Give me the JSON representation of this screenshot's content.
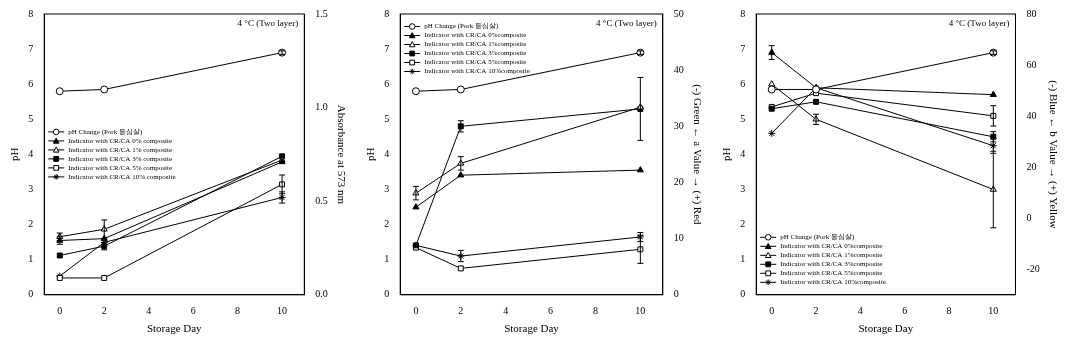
{
  "chart_data": [
    {
      "type": "line",
      "x_label": "Storage Day",
      "y_label": "pH",
      "y2_label": "Absorbance at 573 nm",
      "annotation": "4 °C (Two layer)",
      "legend": "center left",
      "grid": false,
      "x": [
        0,
        2,
        10
      ],
      "xlim": [
        -0.7,
        11
      ],
      "xticks": [
        0,
        2,
        4,
        6,
        8,
        10
      ],
      "ylim": [
        0,
        8
      ],
      "yticks": [
        0,
        1,
        2,
        3,
        4,
        5,
        6,
        7,
        8
      ],
      "y2lim": [
        0,
        1.5
      ],
      "y2ticks": [
        {
          "value": 0,
          "label": "0.0"
        },
        {
          "value": 0.5,
          "label": "0.5"
        },
        {
          "value": 1,
          "label": "1.0"
        },
        {
          "value": 1.5,
          "label": "1.5"
        }
      ],
      "series": [
        {
          "name": "pH Change (Pork 등심살)",
          "color": "#000000",
          "marker": "circle_open",
          "axis": "y",
          "values": [
            5.8,
            5.85,
            6.9
          ],
          "errors": [
            null,
            null,
            0.05
          ]
        },
        {
          "name": "Indicator with CR/CA 0% composite",
          "color": "#000000",
          "marker": "triangle",
          "axis": "y2",
          "values": [
            0.29,
            0.3,
            0.71
          ],
          "errors": [
            0.02,
            null,
            null
          ]
        },
        {
          "name": "Indicator with CR/CA 1% composite",
          "color": "#000000",
          "marker": "triangle_open",
          "axis": "y2",
          "values": [
            0.31,
            0.35,
            0.72
          ],
          "errors": [
            0.02,
            0.05,
            null
          ]
        },
        {
          "name": "Indicator with CR/CA 3% composite",
          "color": "#000000",
          "marker": "square",
          "axis": "y2",
          "values": [
            0.21,
            0.26,
            0.74
          ],
          "errors": [
            null,
            0.02,
            null
          ]
        },
        {
          "name": "Indicator with CR/CA 5% composite",
          "color": "#000000",
          "marker": "square_open",
          "axis": "y2",
          "values": [
            0.09,
            0.09,
            0.59
          ],
          "errors": [
            null,
            null,
            0.05
          ]
        },
        {
          "name": "Indicator with CR/CA 10% composite",
          "color": "#000000",
          "marker": "star",
          "axis": "y2",
          "values": [
            0.1,
            0.28,
            0.52
          ],
          "errors": [
            null,
            null,
            0.03
          ]
        }
      ]
    },
    {
      "type": "line",
      "x_label": "Storage Day",
      "y_label": "pH",
      "y2_label": "(-) Green ← a Value → (+) Red",
      "annotation": "4 °C (Two layer)",
      "legend": "upper left",
      "grid": false,
      "x": [
        0,
        2,
        10
      ],
      "xlim": [
        -0.7,
        11
      ],
      "xticks": [
        0,
        2,
        4,
        6,
        8,
        10
      ],
      "ylim": [
        0,
        8
      ],
      "yticks": [
        0,
        1,
        2,
        3,
        4,
        5,
        6,
        7,
        8
      ],
      "y2lim": [
        0,
        50
      ],
      "y2ticks": [
        0,
        10,
        20,
        30,
        40,
        50
      ],
      "series": [
        {
          "name": "pH Change (Pork 등심살)",
          "color": "#000000",
          "marker": "circle_open",
          "axis": "y",
          "values": [
            5.8,
            5.85,
            6.9
          ],
          "errors": [
            null,
            null,
            0.05
          ]
        },
        {
          "name": "Indicator with CR/CA 0%composite",
          "color": "#000000",
          "marker": "triangle",
          "axis": "y2",
          "values": [
            15.6,
            21.3,
            22.2
          ],
          "errors": [
            null,
            null,
            null
          ]
        },
        {
          "name": "Indicator with CR/CA 1%composite",
          "color": "#000000",
          "marker": "triangle_open",
          "axis": "y2",
          "values": [
            18.1,
            23.4,
            33.4
          ],
          "errors": [
            1.2,
            1.2,
            null
          ]
        },
        {
          "name": "Indicator with CR/CA 3%composite",
          "color": "#000000",
          "marker": "square",
          "axis": "y2",
          "values": [
            8.8,
            30,
            33.1
          ],
          "errors": [
            null,
            1,
            5.6
          ]
        },
        {
          "name": "Indicator with CR/CA 5%composite",
          "color": "#000000",
          "marker": "square_open",
          "axis": "y2",
          "values": [
            8.4,
            4.7,
            8.1
          ],
          "errors": [
            null,
            null,
            2.5
          ]
        },
        {
          "name": "Indicator with CR/CA 10%composite",
          "color": "#000000",
          "marker": "star",
          "axis": "y2",
          "values": [
            8.8,
            6.9,
            10.3
          ],
          "errors": [
            null,
            1,
            0.8
          ]
        }
      ]
    },
    {
      "type": "line",
      "x_label": "Storage Day",
      "y_label": "pH",
      "y2_label": "(-) Blue ← b Value → (+) Yellow",
      "annotation": "4 °C (Two layer)",
      "legend": "lower left",
      "grid": false,
      "x": [
        0,
        2,
        10
      ],
      "xlim": [
        -0.7,
        11
      ],
      "xticks": [
        0,
        2,
        4,
        6,
        8,
        10
      ],
      "ylim": [
        0,
        8
      ],
      "yticks": [
        0,
        1,
        2,
        3,
        4,
        5,
        6,
        7,
        8
      ],
      "y2lim": [
        -30,
        80
      ],
      "y2ticks": [
        -20,
        0,
        20,
        40,
        60,
        80
      ],
      "series": [
        {
          "name": "pH Change (Pork 등심살)",
          "color": "#000000",
          "marker": "circle_open",
          "axis": "y",
          "values": [
            5.85,
            5.85,
            6.9
          ],
          "errors": [
            null,
            null,
            0.05
          ]
        },
        {
          "name": "Indicator with CR/CA 0%composite",
          "color": "#000000",
          "marker": "triangle",
          "axis": "y2",
          "values": [
            64.9,
            51.1,
            48.4
          ],
          "errors": [
            2.7,
            null,
            null
          ]
        },
        {
          "name": "Indicator with CR/CA 1%composite",
          "color": "#000000",
          "marker": "triangle_open",
          "axis": "y2",
          "values": [
            52.5,
            38.75,
            11.25
          ],
          "errors": [
            null,
            2,
            15
          ]
        },
        {
          "name": "Indicator with CR/CA 3%composite",
          "color": "#000000",
          "marker": "square",
          "axis": "y2",
          "values": [
            42.9,
            45.6,
            31.9
          ],
          "errors": [
            null,
            null,
            2
          ]
        },
        {
          "name": "Indicator with CR/CA 5%composite",
          "color": "#000000",
          "marker": "square_open",
          "axis": "y2",
          "values": [
            43.6,
            49,
            40.1
          ],
          "errors": [
            null,
            null,
            4
          ]
        },
        {
          "name": "Indicator with CR/CA 10%composite",
          "color": "#000000",
          "marker": "star",
          "axis": "y2",
          "values": [
            33.25,
            51.1,
            28.4
          ],
          "errors": [
            null,
            null,
            3
          ]
        }
      ]
    }
  ]
}
